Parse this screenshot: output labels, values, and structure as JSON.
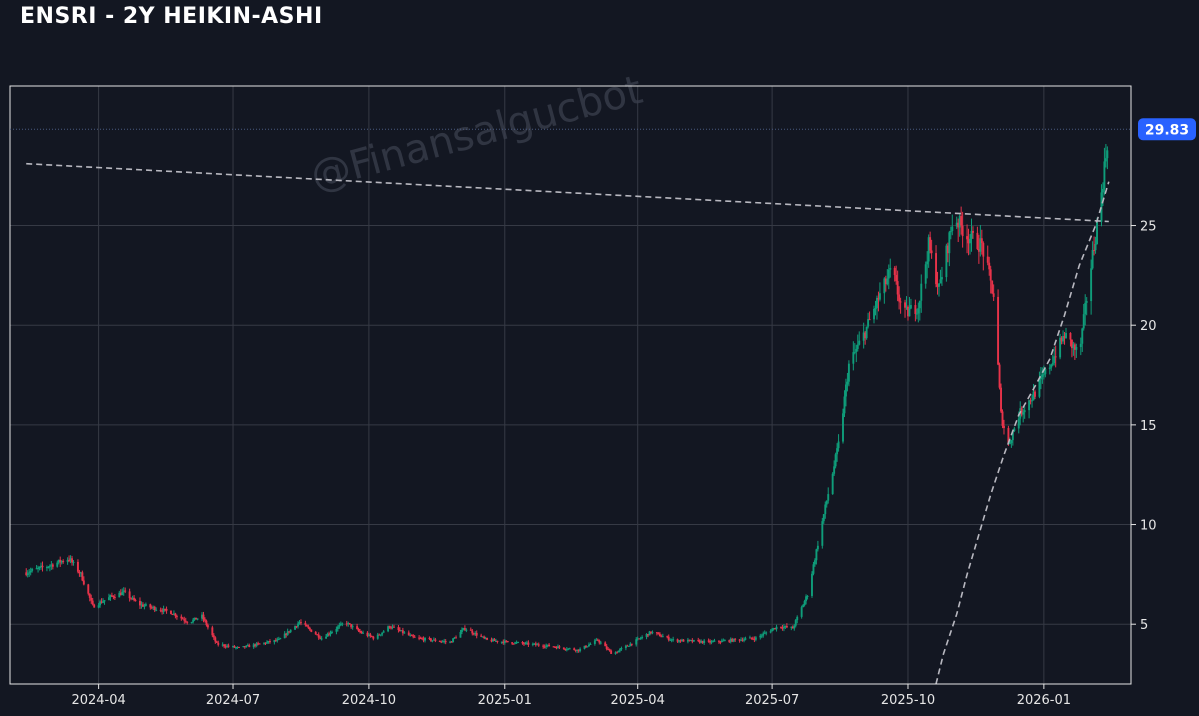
{
  "title": "ENSRI - 2Y HEIKIN-ASHI",
  "watermark": "@Finansalgucbot",
  "colors": {
    "background": "#131722",
    "up": "#0f9d7a",
    "down": "#e8334a",
    "grid": "#363a45",
    "trendline": "#b8b8c0",
    "badge": "#2962ff"
  },
  "chart_data": {
    "type": "candlestick",
    "style": "heikin-ashi",
    "last_price": "29.83",
    "xlim": [
      "2024-02-01",
      "2026-03-01"
    ],
    "ylim": [
      2,
      32
    ],
    "y_ticks": [
      5,
      10,
      15,
      20,
      25
    ],
    "x_ticks": [
      "2024-04",
      "2024-07",
      "2024-10",
      "2025-01",
      "2025-04",
      "2025-07",
      "2025-10",
      "2026-01"
    ],
    "grid": true,
    "price_path": [
      [
        "2024-02-12",
        7.6
      ],
      [
        "2024-02-26",
        7.9
      ],
      [
        "2024-03-12",
        8.3
      ],
      [
        "2024-03-20",
        7.5
      ],
      [
        "2024-03-28",
        5.9
      ],
      [
        "2024-04-10",
        6.4
      ],
      [
        "2024-04-18",
        6.6
      ],
      [
        "2024-04-28",
        6.0
      ],
      [
        "2024-05-20",
        5.6
      ],
      [
        "2024-06-01",
        5.1
      ],
      [
        "2024-06-10",
        5.4
      ],
      [
        "2024-06-20",
        4.0
      ],
      [
        "2024-07-05",
        3.8
      ],
      [
        "2024-08-01",
        4.2
      ],
      [
        "2024-08-15",
        5.1
      ],
      [
        "2024-08-30",
        4.3
      ],
      [
        "2024-09-15",
        5.1
      ],
      [
        "2024-09-25",
        4.6
      ],
      [
        "2024-10-05",
        4.3
      ],
      [
        "2024-10-15",
        4.9
      ],
      [
        "2024-11-01",
        4.3
      ],
      [
        "2024-11-25",
        4.1
      ],
      [
        "2024-12-05",
        4.8
      ],
      [
        "2024-12-20",
        4.2
      ],
      [
        "2025-02-01",
        3.9
      ],
      [
        "2025-02-20",
        3.7
      ],
      [
        "2025-03-05",
        4.2
      ],
      [
        "2025-03-15",
        3.5
      ],
      [
        "2025-04-10",
        4.6
      ],
      [
        "2025-04-25",
        4.2
      ],
      [
        "2025-05-20",
        4.1
      ],
      [
        "2025-06-20",
        4.3
      ],
      [
        "2025-07-05",
        4.9
      ],
      [
        "2025-07-15",
        4.8
      ],
      [
        "2025-07-25",
        6.5
      ],
      [
        "2025-08-05",
        10.5
      ],
      [
        "2025-08-15",
        14.0
      ],
      [
        "2025-08-22",
        18.0
      ],
      [
        "2025-09-01",
        19.5
      ],
      [
        "2025-09-12",
        21.5
      ],
      [
        "2025-09-20",
        22.8
      ],
      [
        "2025-09-28",
        20.5
      ],
      [
        "2025-10-08",
        21.0
      ],
      [
        "2025-10-15",
        24.0
      ],
      [
        "2025-10-22",
        21.8
      ],
      [
        "2025-11-01",
        25.5
      ],
      [
        "2025-11-10",
        24.5
      ],
      [
        "2025-11-20",
        24.0
      ],
      [
        "2025-11-28",
        21.5
      ],
      [
        "2025-12-03",
        15.5
      ],
      [
        "2025-12-08",
        14.0
      ],
      [
        "2025-12-15",
        15.5
      ],
      [
        "2025-12-25",
        16.5
      ],
      [
        "2026-01-05",
        18.0
      ],
      [
        "2026-01-15",
        19.5
      ],
      [
        "2026-01-25",
        18.5
      ],
      [
        "2026-02-01",
        22.5
      ],
      [
        "2026-02-08",
        26.0
      ],
      [
        "2026-02-14",
        29.83
      ]
    ],
    "trendlines": [
      {
        "style": "dashed",
        "points": [
          [
            "2024-02-12",
            28.1
          ],
          [
            "2026-02-14",
            25.2
          ]
        ]
      },
      {
        "style": "dashed",
        "points": [
          [
            "2025-10-20",
            2.0
          ],
          [
            "2025-10-25",
            3.5
          ],
          [
            "2025-11-03",
            5.5
          ],
          [
            "2025-11-10",
            7.5
          ],
          [
            "2025-11-18",
            9.5
          ],
          [
            "2025-11-26",
            11.5
          ],
          [
            "2025-12-05",
            13.5
          ],
          [
            "2025-12-15",
            15.5
          ],
          [
            "2025-12-25",
            16.8
          ],
          [
            "2026-01-05",
            18.3
          ],
          [
            "2026-01-15",
            20.5
          ],
          [
            "2026-01-25",
            23.0
          ],
          [
            "2026-02-05",
            25.0
          ],
          [
            "2026-02-14",
            27.2
          ]
        ]
      }
    ]
  }
}
